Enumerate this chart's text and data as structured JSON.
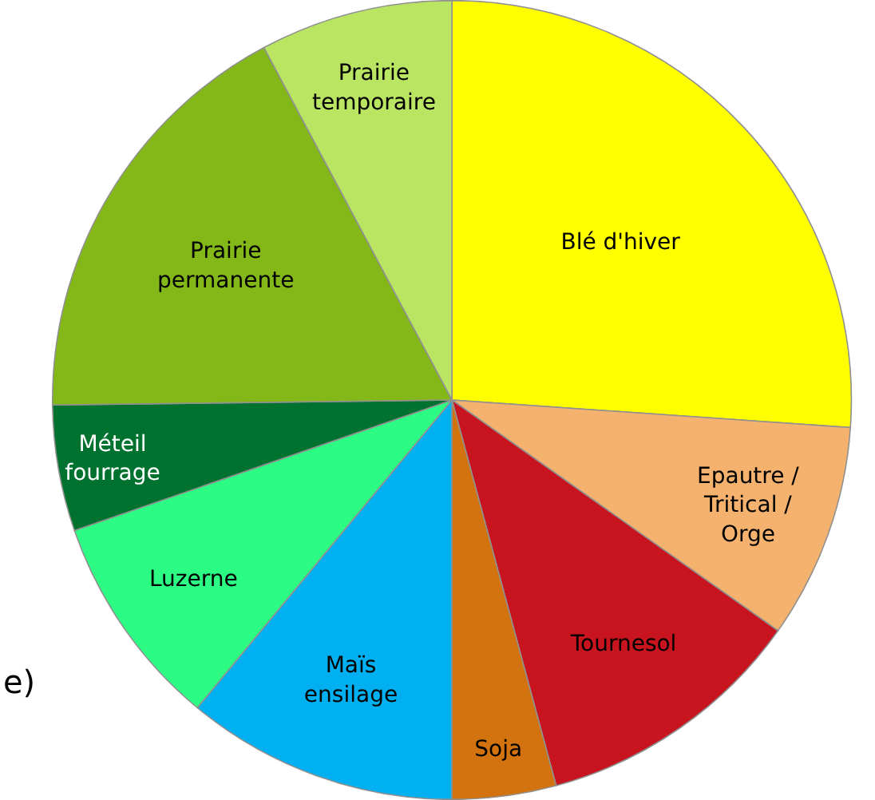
{
  "chart_data": {
    "type": "pie",
    "categories": [
      "Blé d'hiver",
      "Epautre /\nTritical /\nOrge",
      "Tournesol",
      "Soja",
      "Maïs\nensilage",
      "Luzerne",
      "Méteil\nfourrage",
      "Prairie\npermanente",
      "Prairie\ntemporaire"
    ],
    "values": [
      26.1,
      8.7,
      11,
      4.2,
      11,
      8.7,
      5.1,
      17.4,
      7.8
    ],
    "colors": [
      "#ffff00",
      "#f4b26e",
      "#c8141e",
      "#d2730f",
      "#00b0f0",
      "#2cfc84",
      "#00722f",
      "#84b819",
      "#b9e563"
    ],
    "annotations": [
      "e)"
    ],
    "legend": false
  }
}
